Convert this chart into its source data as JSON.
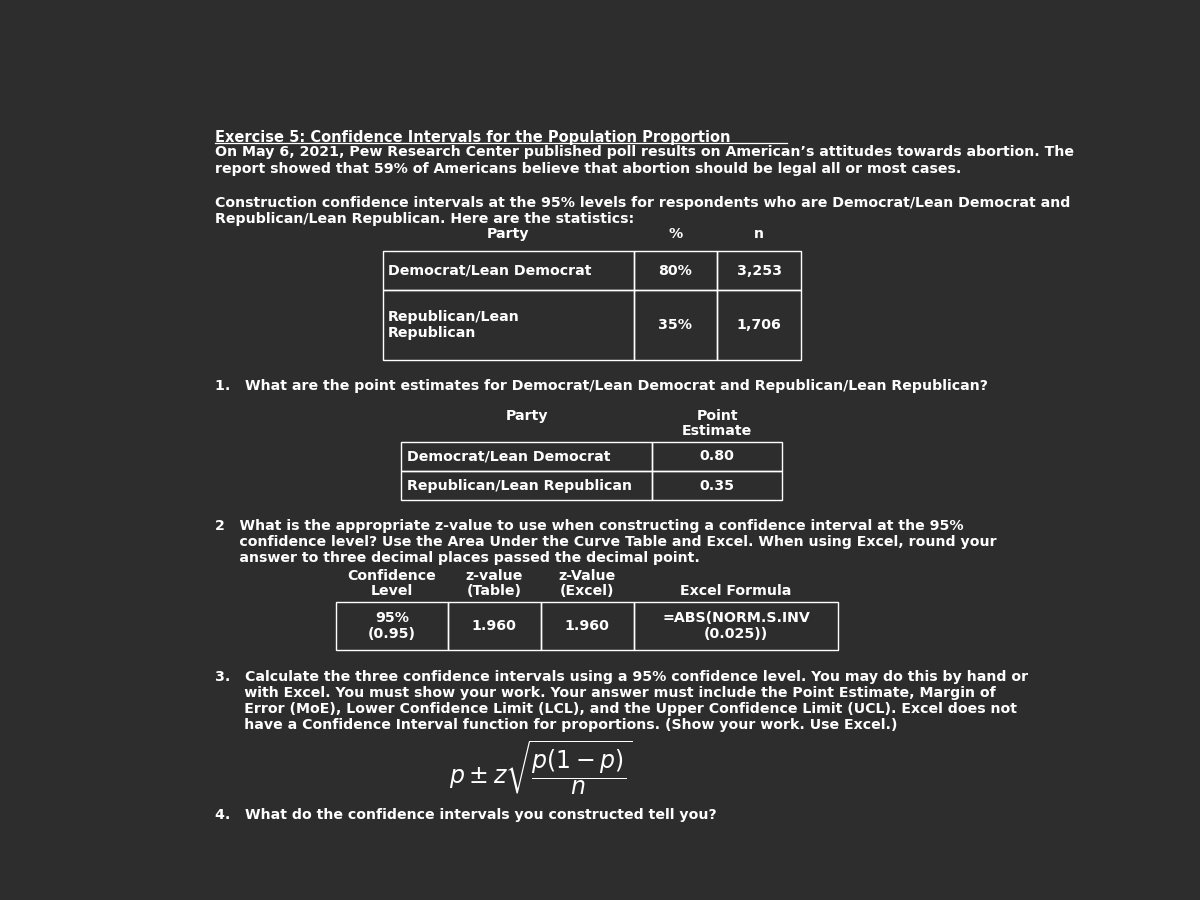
{
  "bg_color": "#2d2d2d",
  "text_color": "#ffffff",
  "table_border_color": "#ffffff",
  "title": "Exercise 5: Confidence Intervals for the Population Proportion",
  "intro_line1": "On May 6, 2021, Pew Research Center published poll results on American’s attitudes towards abortion. The",
  "intro_line2": "report showed that 59% of Americans believe that abortion should be legal all or most cases.",
  "construction_text1": "Construction confidence intervals at the 95% levels for respondents who are Democrat/Lean Democrat and",
  "construction_text2": "Republican/Lean Republican. Here are the statistics:",
  "stats_headers": [
    "Party",
    "%",
    "n"
  ],
  "stats_data": [
    [
      "Democrat/Lean Democrat",
      "80%",
      "3,253"
    ],
    [
      "Republican/Lean\nRepublican",
      "35%",
      "1,706"
    ]
  ],
  "q1_text": "1.   What are the point estimates for Democrat/Lean Democrat and Republican/Lean Republican?",
  "q1_data": [
    [
      "Democrat/Lean Democrat",
      "0.80"
    ],
    [
      "Republican/Lean Republican",
      "0.35"
    ]
  ],
  "q2_text_lines": [
    "2   What is the appropriate z-value to use when constructing a confidence interval at the 95%",
    "     confidence level? Use the Area Under the Curve Table and Excel. When using Excel, round your",
    "     answer to three decimal places passed the decimal point."
  ],
  "q2_header_row1": [
    "Confidence",
    "z-value",
    "z-Value",
    ""
  ],
  "q2_header_row2": [
    "Level",
    "(Table)",
    "(Excel)",
    "Excel Formula"
  ],
  "q2_row": [
    "95%\n(0.95)",
    "1.960",
    "1.960",
    "=ABS(NORM.S.INV\n(0.025))"
  ],
  "q3_text_lines": [
    "3.   Calculate the three confidence intervals using a 95% confidence level. You may do this by hand or",
    "      with Excel. You must show your work. Your answer must include the Point Estimate, Margin of",
    "      Error (MoE), Lower Confidence Limit (LCL), and the Upper Confidence Limit (UCL). Excel does not",
    "      have a Confidence Interval function for proportions. (Show your work. Use Excel.)"
  ],
  "q4_text": "4.   What do the confidence intervals you constructed tell you?"
}
